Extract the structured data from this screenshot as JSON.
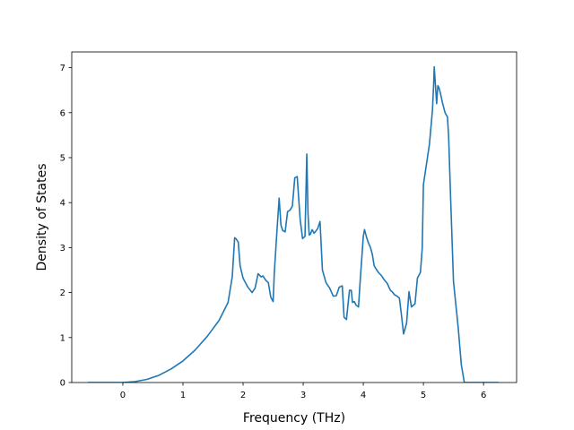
{
  "chart_data": {
    "type": "line",
    "title": "",
    "xlabel": "Frequency (THz)",
    "ylabel": "Density of States",
    "xlim": [
      -0.85,
      6.55
    ],
    "ylim": [
      0,
      7.35
    ],
    "xticks": [
      0,
      1,
      2,
      3,
      4,
      5,
      6
    ],
    "yticks": [
      0,
      1,
      2,
      3,
      4,
      5,
      6,
      7
    ],
    "grid": false,
    "legend": "none",
    "colors": {
      "line": "#1f77b4",
      "axes": "#000000",
      "background": "#ffffff"
    },
    "series": [
      {
        "x": [
          -0.58,
          0.0,
          0.2,
          0.4,
          0.6,
          0.8,
          1.0,
          1.2,
          1.4,
          1.6,
          1.75,
          1.82,
          1.86,
          1.88,
          1.92,
          1.95,
          2.0,
          2.08,
          2.15,
          2.2,
          2.25,
          2.3,
          2.33,
          2.38,
          2.42,
          2.46,
          2.5,
          2.52,
          2.56,
          2.6,
          2.63,
          2.66,
          2.7,
          2.74,
          2.78,
          2.82,
          2.86,
          2.9,
          2.95,
          2.99,
          3.03,
          3.06,
          3.08,
          3.1,
          3.12,
          3.15,
          3.18,
          3.2,
          3.24,
          3.28,
          3.32,
          3.38,
          3.44,
          3.5,
          3.55,
          3.6,
          3.65,
          3.68,
          3.72,
          3.77,
          3.8,
          3.82,
          3.85,
          3.88,
          3.92,
          3.95,
          4.0,
          4.02,
          4.05,
          4.08,
          4.12,
          4.15,
          4.18,
          4.2,
          4.25,
          4.3,
          4.35,
          4.4,
          4.45,
          4.48,
          4.52,
          4.56,
          4.6,
          4.63,
          4.67,
          4.72,
          4.76,
          4.8,
          4.86,
          4.9,
          4.95,
          4.98,
          5.0,
          5.05,
          5.1,
          5.15,
          5.17,
          5.18,
          5.22,
          5.24,
          5.26,
          5.28,
          5.32,
          5.36,
          5.4,
          5.42,
          5.45,
          5.5,
          5.58,
          5.63,
          5.68,
          5.72,
          6.25
        ],
        "y": [
          0.0,
          0.0,
          0.02,
          0.07,
          0.16,
          0.3,
          0.48,
          0.72,
          1.02,
          1.38,
          1.78,
          2.35,
          3.22,
          3.2,
          3.12,
          2.6,
          2.32,
          2.12,
          2.0,
          2.1,
          2.42,
          2.35,
          2.37,
          2.27,
          2.22,
          1.9,
          1.8,
          2.45,
          3.3,
          4.1,
          3.5,
          3.38,
          3.35,
          3.8,
          3.83,
          3.92,
          4.55,
          4.58,
          3.62,
          3.2,
          3.25,
          5.08,
          3.75,
          3.28,
          3.3,
          3.4,
          3.32,
          3.35,
          3.42,
          3.58,
          2.5,
          2.22,
          2.1,
          1.92,
          1.93,
          2.12,
          2.15,
          1.45,
          1.4,
          2.05,
          2.05,
          1.78,
          1.8,
          1.72,
          1.68,
          2.3,
          3.25,
          3.4,
          3.25,
          3.12,
          3.0,
          2.85,
          2.6,
          2.55,
          2.45,
          2.38,
          2.28,
          2.2,
          2.05,
          2.02,
          1.95,
          1.92,
          1.88,
          1.55,
          1.08,
          1.32,
          2.02,
          1.68,
          1.75,
          2.32,
          2.45,
          2.98,
          4.4,
          4.85,
          5.3,
          6.05,
          6.62,
          7.02,
          6.2,
          6.6,
          6.55,
          6.45,
          6.2,
          6.0,
          5.9,
          5.45,
          4.2,
          2.25,
          1.2,
          0.4,
          0.0,
          0.0,
          0.0
        ]
      }
    ]
  }
}
